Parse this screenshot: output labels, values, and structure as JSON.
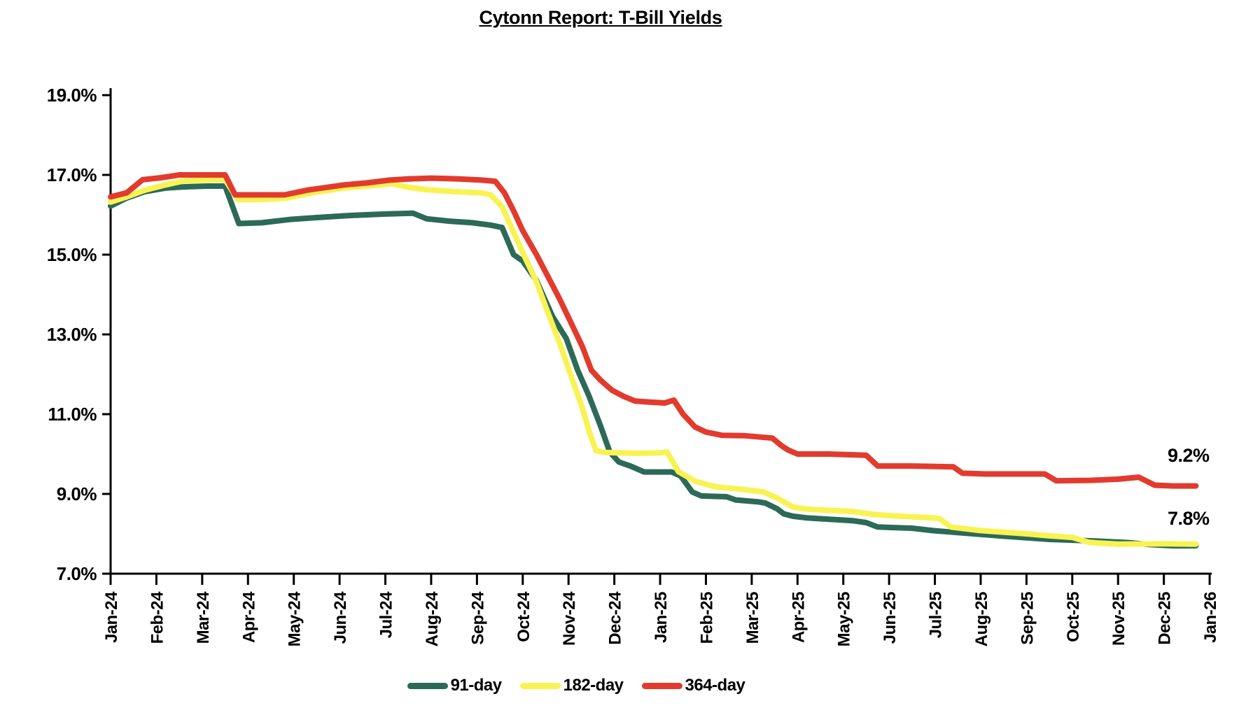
{
  "chart_data": {
    "type": "line",
    "title": "Cytonn Report: T-Bill Yields",
    "x_axis": {
      "labels": [
        "Jan-24",
        "Feb-24",
        "Mar-24",
        "Apr-24",
        "May-24",
        "Jun-24",
        "Jul-24",
        "Aug-24",
        "Sep-24",
        "Oct-24",
        "Nov-24",
        "Dec-24",
        "Jan-25",
        "Feb-25",
        "Mar-25",
        "Apr-25",
        "May-25",
        "Jun-25",
        "Jul-25",
        "Aug-25",
        "Sep-25",
        "Oct-25",
        "Nov-25",
        "Dec-25",
        "Jan-26"
      ],
      "unit_note": "series x values are months since Jan-24 (0 = Jan-24, 24 = Jan-26)"
    },
    "y_axis": {
      "min": 7.0,
      "max": 19.0,
      "step": 2.0,
      "ticks": [
        {
          "value": 19.0,
          "label": "19.0%"
        },
        {
          "value": 17.0,
          "label": "17.0%"
        },
        {
          "value": 15.0,
          "label": "15.0%"
        },
        {
          "value": 13.0,
          "label": "13.0%"
        },
        {
          "value": 11.0,
          "label": "11.0%"
        },
        {
          "value": 9.0,
          "label": "9.0%"
        },
        {
          "value": 7.0,
          "label": "7.0%"
        }
      ]
    },
    "grid": "off",
    "legend_position": "bottom-center",
    "series": [
      {
        "name": "91-day",
        "color": "#2c6a58",
        "points": [
          [
            0,
            16.22
          ],
          [
            0.35,
            16.42
          ],
          [
            0.75,
            16.58
          ],
          [
            1.2,
            16.67
          ],
          [
            1.6,
            16.7
          ],
          [
            2.1,
            16.72
          ],
          [
            2.5,
            16.72
          ],
          [
            2.8,
            15.78
          ],
          [
            3.3,
            15.8
          ],
          [
            3.9,
            15.88
          ],
          [
            4.5,
            15.93
          ],
          [
            5.2,
            15.98
          ],
          [
            6.0,
            16.02
          ],
          [
            6.6,
            16.04
          ],
          [
            6.9,
            15.9
          ],
          [
            7.4,
            15.84
          ],
          [
            7.9,
            15.8
          ],
          [
            8.3,
            15.74
          ],
          [
            8.55,
            15.68
          ],
          [
            8.8,
            15.0
          ],
          [
            9.0,
            14.84
          ],
          [
            9.3,
            14.35
          ],
          [
            9.65,
            13.45
          ],
          [
            9.95,
            12.9
          ],
          [
            10.2,
            12.1
          ],
          [
            10.45,
            11.45
          ],
          [
            10.7,
            10.7
          ],
          [
            10.9,
            10.05
          ],
          [
            11.1,
            9.8
          ],
          [
            11.35,
            9.7
          ],
          [
            11.65,
            9.55
          ],
          [
            12.25,
            9.55
          ],
          [
            12.45,
            9.45
          ],
          [
            12.7,
            9.05
          ],
          [
            12.9,
            8.95
          ],
          [
            13.45,
            8.93
          ],
          [
            13.65,
            8.85
          ],
          [
            14.15,
            8.8
          ],
          [
            14.3,
            8.77
          ],
          [
            14.55,
            8.63
          ],
          [
            14.7,
            8.5
          ],
          [
            14.9,
            8.44
          ],
          [
            15.2,
            8.4
          ],
          [
            16.2,
            8.33
          ],
          [
            16.5,
            8.28
          ],
          [
            16.75,
            8.17
          ],
          [
            17.5,
            8.14
          ],
          [
            17.95,
            8.08
          ],
          [
            18.5,
            8.03
          ],
          [
            19.5,
            7.94
          ],
          [
            20.5,
            7.86
          ],
          [
            21.5,
            7.82
          ],
          [
            22.2,
            7.78
          ],
          [
            22.7,
            7.73
          ],
          [
            23.2,
            7.7
          ],
          [
            23.7,
            7.7
          ]
        ]
      },
      {
        "name": "182-day",
        "color": "#f8f353",
        "points": [
          [
            0,
            16.32
          ],
          [
            0.35,
            16.45
          ],
          [
            0.75,
            16.62
          ],
          [
            1.2,
            16.75
          ],
          [
            1.6,
            16.85
          ],
          [
            2.1,
            16.87
          ],
          [
            2.5,
            16.88
          ],
          [
            2.78,
            16.38
          ],
          [
            3.3,
            16.38
          ],
          [
            3.85,
            16.42
          ],
          [
            4.4,
            16.55
          ],
          [
            5.1,
            16.67
          ],
          [
            5.7,
            16.73
          ],
          [
            6.15,
            16.78
          ],
          [
            6.45,
            16.7
          ],
          [
            6.9,
            16.63
          ],
          [
            7.5,
            16.58
          ],
          [
            8.1,
            16.55
          ],
          [
            8.3,
            16.5
          ],
          [
            8.55,
            16.2
          ],
          [
            9.0,
            15.05
          ],
          [
            9.3,
            14.32
          ],
          [
            9.55,
            13.54
          ],
          [
            9.8,
            12.8
          ],
          [
            10.05,
            11.97
          ],
          [
            10.3,
            11.16
          ],
          [
            10.45,
            10.57
          ],
          [
            10.6,
            10.08
          ],
          [
            10.8,
            10.04
          ],
          [
            11.5,
            10.02
          ],
          [
            12.0,
            10.03
          ],
          [
            12.15,
            10.05
          ],
          [
            12.4,
            9.56
          ],
          [
            12.76,
            9.32
          ],
          [
            13.2,
            9.18
          ],
          [
            13.75,
            9.12
          ],
          [
            14.25,
            9.05
          ],
          [
            14.55,
            8.9
          ],
          [
            14.75,
            8.77
          ],
          [
            14.9,
            8.67
          ],
          [
            15.2,
            8.62
          ],
          [
            16.2,
            8.56
          ],
          [
            16.65,
            8.49
          ],
          [
            16.95,
            8.46
          ],
          [
            17.95,
            8.4
          ],
          [
            18.1,
            8.38
          ],
          [
            18.35,
            8.17
          ],
          [
            19.0,
            8.08
          ],
          [
            20.0,
            8.0
          ],
          [
            20.5,
            7.95
          ],
          [
            21.0,
            7.91
          ],
          [
            21.35,
            7.79
          ],
          [
            21.55,
            7.77
          ],
          [
            22.0,
            7.74
          ],
          [
            23.0,
            7.75
          ],
          [
            23.7,
            7.74
          ]
        ]
      },
      {
        "name": "364-day",
        "color": "#e23b2e",
        "points": [
          [
            0,
            16.45
          ],
          [
            0.35,
            16.55
          ],
          [
            0.7,
            16.88
          ],
          [
            1.1,
            16.93
          ],
          [
            1.5,
            17.0
          ],
          [
            2.0,
            17.0
          ],
          [
            2.5,
            17.0
          ],
          [
            2.72,
            16.5
          ],
          [
            3.3,
            16.5
          ],
          [
            3.8,
            16.5
          ],
          [
            4.3,
            16.62
          ],
          [
            5.1,
            16.75
          ],
          [
            5.6,
            16.8
          ],
          [
            6.1,
            16.87
          ],
          [
            6.5,
            16.9
          ],
          [
            7.0,
            16.92
          ],
          [
            7.6,
            16.9
          ],
          [
            8.1,
            16.87
          ],
          [
            8.4,
            16.84
          ],
          [
            8.6,
            16.55
          ],
          [
            8.8,
            16.1
          ],
          [
            9.0,
            15.6
          ],
          [
            9.3,
            15.0
          ],
          [
            9.55,
            14.45
          ],
          [
            9.8,
            13.9
          ],
          [
            10.05,
            13.3
          ],
          [
            10.3,
            12.7
          ],
          [
            10.5,
            12.1
          ],
          [
            10.7,
            11.85
          ],
          [
            10.95,
            11.6
          ],
          [
            11.2,
            11.45
          ],
          [
            11.45,
            11.33
          ],
          [
            11.8,
            11.3
          ],
          [
            12.1,
            11.28
          ],
          [
            12.3,
            11.35
          ],
          [
            12.5,
            11.0
          ],
          [
            12.76,
            10.68
          ],
          [
            13.0,
            10.55
          ],
          [
            13.35,
            10.47
          ],
          [
            13.85,
            10.46
          ],
          [
            14.45,
            10.4
          ],
          [
            14.66,
            10.2
          ],
          [
            14.8,
            10.1
          ],
          [
            15.0,
            10.0
          ],
          [
            15.7,
            10.0
          ],
          [
            16.5,
            9.97
          ],
          [
            16.75,
            9.7
          ],
          [
            17.5,
            9.7
          ],
          [
            18.4,
            9.68
          ],
          [
            18.6,
            9.52
          ],
          [
            19.1,
            9.5
          ],
          [
            20.4,
            9.5
          ],
          [
            20.65,
            9.33
          ],
          [
            21.4,
            9.34
          ],
          [
            22.0,
            9.37
          ],
          [
            22.45,
            9.42
          ],
          [
            22.8,
            9.22
          ],
          [
            23.2,
            9.2
          ],
          [
            23.7,
            9.2
          ]
        ]
      }
    ],
    "end_labels": [
      {
        "series": "364-day",
        "text": "9.2%"
      },
      {
        "series": "182-day",
        "text": "7.8%"
      }
    ]
  }
}
